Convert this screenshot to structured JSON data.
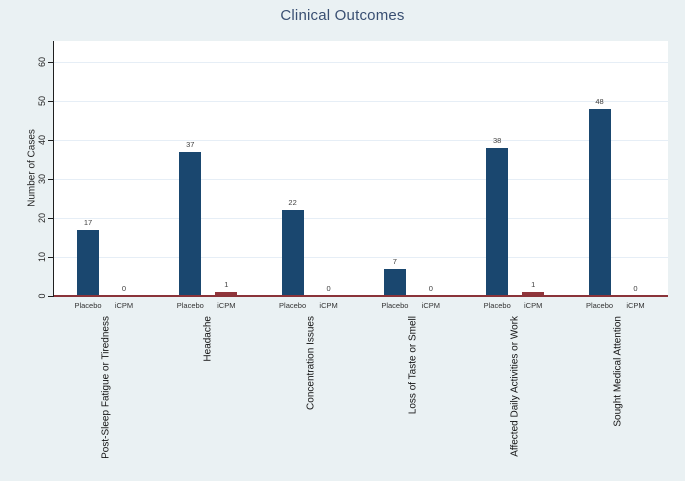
{
  "chart_data": {
    "type": "bar",
    "title": "Clinical Outcomes",
    "ylabel": "Number of Cases",
    "ylim": [
      0,
      65
    ],
    "yticks": [
      0,
      10,
      20,
      30,
      40,
      50,
      60
    ],
    "grid": true,
    "legend_position": "none",
    "group_tick_labels": [
      "Placebo",
      "iCPM"
    ],
    "categories": [
      "Post-Sleep Fatigue or Tiredness",
      "Headache",
      "Concentration Issues",
      "Loss of Taste or Smell",
      "Affected Daily Activities or Work",
      "Sought Medical Attention"
    ],
    "series": [
      {
        "name": "Placebo",
        "color": "#1a476f",
        "values": [
          17,
          37,
          22,
          7,
          38,
          48
        ]
      },
      {
        "name": "iCPM",
        "color": "#90353b",
        "values": [
          0,
          1,
          0,
          0,
          1,
          0
        ]
      }
    ],
    "bar_value_labels_shown": true
  },
  "style": {
    "page_background": "#eaf1f3",
    "plot_background": "#ffffff",
    "grid_color": "#e6eef6",
    "axis_line_color": "#1f1f1f",
    "baseline_color": "#8a3339",
    "title_color": "#394f72",
    "tick_text_color": "#262626",
    "value_label_color": "#404040"
  }
}
